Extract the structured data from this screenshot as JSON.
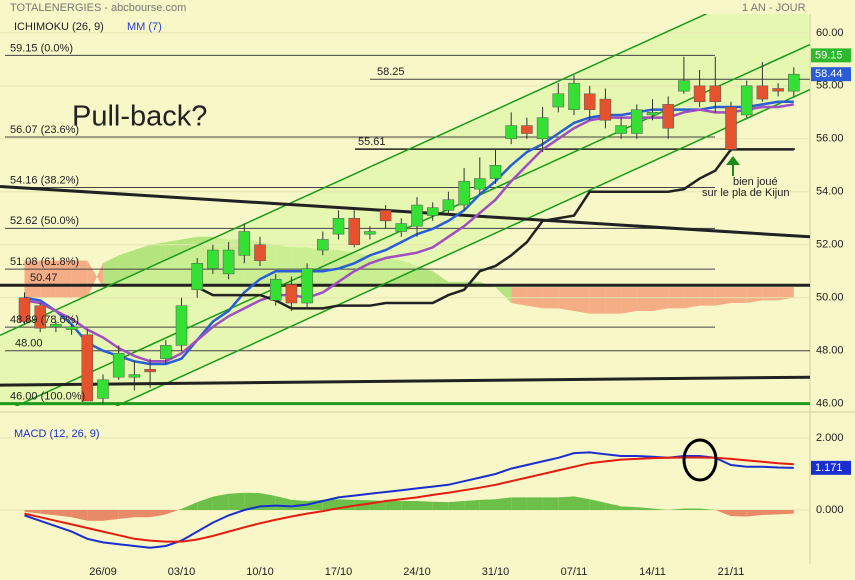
{
  "chart_data": [
    {
      "type": "candlestick",
      "title": "TOTALENERGIES - abcbourse.com",
      "subtitle": "1 AN - JOUR",
      "legend": [
        "ICHIMOKU (26, 9)",
        "MM (7)"
      ],
      "categories": [
        null,
        null,
        null,
        null,
        null,
        "26/09",
        null,
        null,
        null,
        null,
        "03/10",
        null,
        null,
        null,
        null,
        "10/10",
        null,
        null,
        null,
        null,
        "17/10",
        null,
        null,
        null,
        null,
        "24/10",
        null,
        null,
        null,
        null,
        "31/10",
        null,
        null,
        null,
        null,
        "07/11",
        null,
        null,
        null,
        null,
        "14/11",
        null,
        null,
        null,
        null,
        "21/11",
        null,
        null,
        null,
        null
      ],
      "open": [
        50.0,
        49.7,
        48.9,
        48.8,
        48.6,
        46.2,
        47.0,
        47.0,
        47.3,
        47.7,
        48.2,
        50.3,
        51.1,
        50.9,
        51.6,
        52.0,
        49.9,
        50.5,
        49.8,
        51.8,
        52.4,
        53.0,
        52.4,
        53.3,
        52.5,
        52.7,
        53.1,
        53.3,
        53.5,
        54.1,
        54.5,
        56.0,
        56.5,
        56.0,
        57.2,
        57.1,
        57.7,
        57.5,
        56.2,
        56.2,
        56.9,
        57.3,
        57.8,
        58.0,
        58.0,
        57.2,
        56.9,
        58.0,
        57.9,
        57.8
      ],
      "high": [
        50.2,
        49.8,
        49.1,
        49.0,
        48.8,
        47.1,
        48.2,
        47.6,
        47.7,
        48.4,
        50.0,
        51.5,
        52.0,
        52.1,
        52.8,
        52.3,
        50.9,
        50.8,
        51.3,
        52.5,
        53.3,
        53.3,
        52.7,
        53.5,
        53.0,
        53.8,
        53.6,
        54.0,
        54.9,
        55.3,
        55.6,
        57.0,
        56.8,
        57.2,
        58.1,
        58.4,
        58.0,
        57.9,
        56.8,
        57.3,
        57.5,
        57.6,
        59.1,
        58.6,
        59.1,
        57.4,
        58.2,
        58.9,
        58.1,
        58.7
      ],
      "low": [
        49.0,
        48.7,
        48.7,
        48.6,
        46.1,
        46.0,
        46.9,
        46.5,
        46.6,
        47.5,
        48.0,
        50.0,
        50.9,
        50.7,
        51.3,
        51.2,
        49.7,
        49.5,
        49.6,
        51.6,
        52.2,
        51.9,
        52.2,
        52.6,
        52.3,
        52.3,
        52.9,
        53.1,
        53.3,
        53.9,
        54.3,
        55.8,
        56.0,
        55.5,
        57.0,
        56.9,
        56.7,
        56.4,
        56.0,
        56.0,
        56.7,
        56.0,
        57.7,
        57.2,
        57.0,
        55.5,
        56.8,
        57.4,
        57.6,
        57.6
      ],
      "close": [
        49.1,
        48.85,
        49.0,
        48.9,
        46.1,
        46.9,
        47.9,
        47.1,
        47.2,
        48.2,
        49.7,
        51.3,
        51.8,
        51.8,
        52.5,
        51.4,
        50.7,
        49.8,
        51.1,
        52.2,
        53.0,
        52.0,
        52.5,
        52.9,
        52.8,
        53.5,
        53.4,
        53.7,
        54.4,
        54.5,
        55.0,
        56.5,
        56.2,
        56.8,
        57.7,
        58.1,
        57.1,
        56.7,
        56.5,
        57.1,
        57.0,
        56.4,
        58.2,
        57.4,
        57.4,
        55.6,
        58.0,
        57.5,
        57.8,
        58.44
      ],
      "colors": {
        "up": "#35e035",
        "down": "#e5532e"
      },
      "lines": [
        {
          "color": "#2a5ed8",
          "values": [
            50.0,
            49.9,
            49.5,
            49.0,
            48.3,
            48.0,
            47.8,
            47.6,
            47.5,
            47.5,
            47.7,
            48.4,
            49.1,
            49.5,
            50.2,
            50.7,
            51.0,
            51.0,
            51.0,
            51.0,
            51.1,
            51.3,
            51.6,
            51.8,
            52.1,
            52.4,
            52.6,
            52.9,
            53.3,
            53.9,
            54.4,
            55.0,
            55.5,
            55.8,
            56.2,
            56.6,
            56.8,
            56.9,
            56.9,
            57.0,
            57.1,
            57.1,
            57.1,
            57.1,
            57.2,
            57.2,
            57.2,
            57.3,
            57.4,
            57.4
          ]
        },
        {
          "color": "#a04fc0",
          "values": [
            49.9,
            49.8,
            49.5,
            49.2,
            48.8,
            48.5,
            48.1,
            47.8,
            47.6,
            47.6,
            47.9,
            48.4,
            48.9,
            49.3,
            49.6,
            49.9,
            50.1,
            50.1,
            50.0,
            50.2,
            50.6,
            51.0,
            51.3,
            51.5,
            51.6,
            51.7,
            51.9,
            52.3,
            52.7,
            53.2,
            53.7,
            54.4,
            55.0,
            55.6,
            56.0,
            56.4,
            56.7,
            56.8,
            56.8,
            56.8,
            56.8,
            56.8,
            57.0,
            57.1,
            57.0,
            57.0,
            57.1,
            57.2,
            57.2,
            57.3
          ]
        },
        {
          "color": "#222222",
          "values": [
            null,
            null,
            null,
            null,
            null,
            null,
            null,
            null,
            null,
            null,
            null,
            50.4,
            50.1,
            50.1,
            50.1,
            50.1,
            49.9,
            49.6,
            49.6,
            49.6,
            49.7,
            49.7,
            49.7,
            49.8,
            49.8,
            49.8,
            49.8,
            50.1,
            50.3,
            51.0,
            51.2,
            51.6,
            52.1,
            52.9,
            53.0,
            53.1,
            54.0,
            54.0,
            54.0,
            54.0,
            54.0,
            54.0,
            54.1,
            54.5,
            54.8,
            55.6,
            55.6,
            55.6,
            55.6,
            55.6
          ]
        }
      ],
      "cloud": {
        "up_color": "#a8e070",
        "down_color": "#f4a07a",
        "span_a": [
          50.0,
          50.0,
          50.0,
          50.0,
          50.0,
          51.3,
          51.6,
          51.8,
          52.0,
          52.1,
          52.2,
          52.3,
          52.3,
          52.2,
          52.2,
          52.1,
          52.0,
          51.9,
          51.9,
          51.8,
          51.8,
          51.7,
          51.6,
          51.5,
          51.4,
          51.2,
          51.0,
          50.6,
          50.6,
          50.6,
          50.4,
          49.8,
          49.7,
          49.6,
          49.6,
          49.5,
          49.4,
          49.4,
          49.4,
          49.5,
          49.5,
          49.6,
          49.6,
          49.7,
          49.7,
          49.8,
          49.8,
          49.9,
          49.9,
          50.0
        ],
        "span_b": [
          51.4,
          51.4,
          51.4,
          51.4,
          51.4,
          50.4,
          50.4,
          50.4,
          50.4,
          50.4,
          50.4,
          50.4,
          50.4,
          50.4,
          50.4,
          50.4,
          50.4,
          50.4,
          50.4,
          50.4,
          50.4,
          50.4,
          50.4,
          50.4,
          50.4,
          50.4,
          50.4,
          50.4,
          50.4,
          50.4,
          50.4,
          50.4,
          50.4,
          50.4,
          50.4,
          50.4,
          50.4,
          50.4,
          50.4,
          50.4,
          50.4,
          50.4,
          50.4,
          50.4,
          50.4,
          50.4,
          50.4,
          50.4,
          50.4,
          50.4
        ]
      },
      "levels": [
        {
          "value": 59.15,
          "label": "59.15  (0.0%)"
        },
        58.25,
        {
          "value": 56.07,
          "label": "56.07  (23.6%)"
        },
        55.61,
        {
          "value": 54.16,
          "label": "54.16  (38.2%)"
        },
        {
          "value": 52.62,
          "label": "52.62  (50.0%)"
        },
        {
          "value": 51.08,
          "label": "51.08  (61.8%)"
        },
        50.47,
        {
          "value": 48.89,
          "label": "48.89  (78.6%)"
        },
        {
          "value": 48.0,
          "label": "48.00"
        },
        {
          "value": 46.0,
          "label": "46.00  (100.0%)"
        }
      ],
      "trendlines": [
        {
          "color": "#1a9a1a",
          "y": [
            48.58,
            62.5
          ]
        },
        {
          "color": "#1a9a1a",
          "y": [
            45.63,
            59.56
          ]
        },
        {
          "color": "#1a9a1a",
          "y": [
            43.9,
            57.86
          ]
        },
        {
          "color": "#222222",
          "y": [
            54.2,
            52.3
          ]
        },
        {
          "color": "#222222",
          "y": [
            46.7,
            47.0
          ]
        }
      ],
      "annotations": [
        "Pull-back?",
        "bien joué",
        "sur le pla de Kijun"
      ],
      "ylim": [
        45.95,
        60.75
      ],
      "yticks": [
        {
          "value": 60,
          "label": "60.00"
        },
        {
          "value": 58,
          "label": "58.00"
        },
        {
          "value": 56,
          "label": "56.00"
        },
        {
          "value": 54,
          "label": "54.00"
        },
        {
          "value": 52,
          "label": "52.00"
        },
        {
          "value": 50,
          "label": "50.00"
        },
        {
          "value": 48,
          "label": "48.00"
        },
        {
          "value": 46,
          "label": "46.00"
        }
      ]
    },
    {
      "type": "line",
      "title": "MACD (12, 26, 9)",
      "series": [
        {
          "color": "#1b2fd0",
          "values": [
            -0.15,
            -0.3,
            -0.45,
            -0.6,
            -0.8,
            -0.9,
            -0.95,
            -1.0,
            -1.05,
            -1.0,
            -0.85,
            -0.6,
            -0.35,
            -0.15,
            0.0,
            0.1,
            0.12,
            0.1,
            0.15,
            0.25,
            0.35,
            0.4,
            0.45,
            0.5,
            0.55,
            0.6,
            0.65,
            0.7,
            0.8,
            0.9,
            1.0,
            1.15,
            1.25,
            1.35,
            1.45,
            1.58,
            1.6,
            1.55,
            1.5,
            1.5,
            1.48,
            1.45,
            1.5,
            1.5,
            1.45,
            1.25,
            1.2,
            1.2,
            1.18,
            1.171
          ]
        },
        {
          "color": "#e51c10",
          "values": [
            -0.1,
            -0.2,
            -0.3,
            -0.4,
            -0.5,
            -0.6,
            -0.7,
            -0.8,
            -0.85,
            -0.88,
            -0.88,
            -0.82,
            -0.72,
            -0.6,
            -0.48,
            -0.37,
            -0.27,
            -0.18,
            -0.1,
            -0.03,
            0.05,
            0.12,
            0.18,
            0.25,
            0.3,
            0.35,
            0.42,
            0.48,
            0.55,
            0.62,
            0.7,
            0.8,
            0.9,
            1.0,
            1.1,
            1.2,
            1.3,
            1.35,
            1.4,
            1.42,
            1.44,
            1.45,
            1.46,
            1.46,
            1.45,
            1.42,
            1.38,
            1.34,
            1.3,
            1.27
          ]
        }
      ],
      "histogram": {
        "up_color": "#6cc04a",
        "down_color": "#e88a68",
        "values": [
          -0.05,
          -0.1,
          -0.15,
          -0.2,
          -0.3,
          -0.3,
          -0.25,
          -0.2,
          -0.2,
          -0.12,
          0.03,
          0.22,
          0.37,
          0.45,
          0.48,
          0.47,
          0.39,
          0.28,
          0.25,
          0.28,
          0.3,
          0.28,
          0.27,
          0.25,
          0.25,
          0.25,
          0.23,
          0.22,
          0.25,
          0.28,
          0.3,
          0.35,
          0.35,
          0.35,
          0.35,
          0.38,
          0.3,
          0.2,
          0.1,
          0.08,
          0.04,
          0,
          0.04,
          0.04,
          0,
          -0.17,
          -0.18,
          -0.14,
          -0.12,
          -0.1
        ]
      },
      "ylim": [
        -1.5,
        2.5
      ],
      "yticks": [
        {
          "value": 2,
          "label": "2.000"
        },
        {
          "value": 0,
          "label": "0.000"
        }
      ]
    }
  ]
}
